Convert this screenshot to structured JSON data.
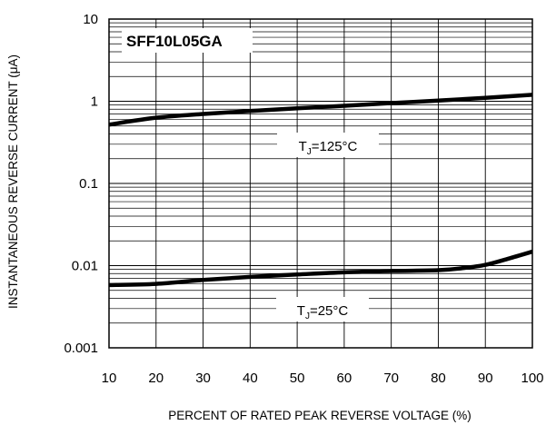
{
  "chart_data": {
    "type": "line",
    "xscale": "linear",
    "yscale": "log",
    "xlim": [
      10,
      100
    ],
    "ylim": [
      0.001,
      10
    ],
    "xticks": [
      "10",
      "20",
      "30",
      "40",
      "50",
      "60",
      "70",
      "80",
      "90",
      "100"
    ],
    "yticks": [
      "0.001",
      "0.01",
      "0.1",
      "1",
      "10"
    ],
    "xlabel": "PERCENT OF RATED PEAK REVERSE VOLTAGE (%)",
    "ylabel": "INSTANTANEOUS REVERSE CURRENT (μA)",
    "part_number": "SFF10L05GA",
    "grid": "major and minor (log decades subdivided)",
    "series": [
      {
        "name": "TJ=125°C",
        "label": {
          "main": "T",
          "sub": "J",
          "tail": "=125°C"
        },
        "x": [
          10,
          20,
          30,
          40,
          50,
          60,
          70,
          80,
          90,
          100
        ],
        "y": [
          0.52,
          0.63,
          0.7,
          0.76,
          0.82,
          0.88,
          0.95,
          1.02,
          1.1,
          1.2
        ]
      },
      {
        "name": "TJ=25°C",
        "label": {
          "main": "T",
          "sub": "J",
          "tail": "=25°C"
        },
        "x": [
          10,
          20,
          30,
          40,
          50,
          60,
          70,
          80,
          85,
          90,
          95,
          100
        ],
        "y": [
          0.0058,
          0.006,
          0.0067,
          0.0073,
          0.0078,
          0.0083,
          0.0086,
          0.0088,
          0.0093,
          0.0102,
          0.0122,
          0.0148
        ]
      }
    ]
  }
}
